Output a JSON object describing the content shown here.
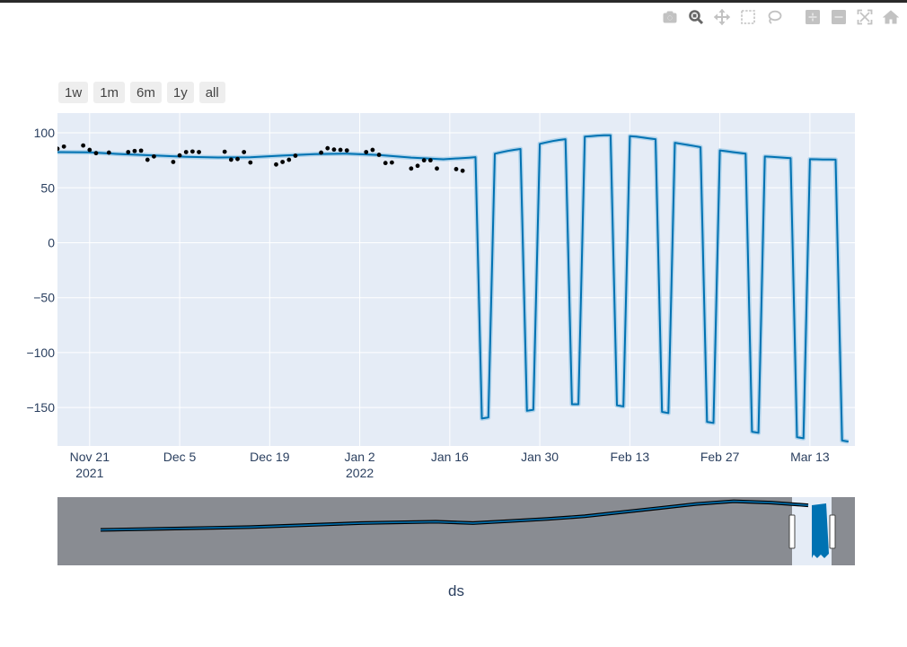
{
  "toolbar": {
    "icons": [
      "camera-icon",
      "zoom-icon",
      "pan-icon",
      "box-select-icon",
      "lasso-icon",
      "zoom-in-icon",
      "zoom-out-icon",
      "autoscale-icon",
      "home-icon"
    ],
    "icon_color": "#c2c2c2",
    "active_color": "#666666"
  },
  "range_selector": [
    {
      "label": "1w"
    },
    {
      "label": "1m"
    },
    {
      "label": "6m"
    },
    {
      "label": "1y"
    },
    {
      "label": "all"
    }
  ],
  "chart_data": {
    "type": "line",
    "xlabel": "ds",
    "ylabel": "",
    "x_range": [
      "2021-11-16",
      "2022-03-19"
    ],
    "ylim": [
      -185,
      118
    ],
    "grid": true,
    "x_ticks": [
      {
        "label": "Nov 21",
        "sub": "2021",
        "date": "2021-11-21"
      },
      {
        "label": "Dec 5",
        "sub": "",
        "date": "2021-12-05"
      },
      {
        "label": "Dec 19",
        "sub": "",
        "date": "2021-12-19"
      },
      {
        "label": "Jan 2",
        "sub": "2022",
        "date": "2022-01-02"
      },
      {
        "label": "Jan 16",
        "sub": "",
        "date": "2022-01-16"
      },
      {
        "label": "Jan 30",
        "sub": "",
        "date": "2022-01-30"
      },
      {
        "label": "Feb 13",
        "sub": "",
        "date": "2022-02-13"
      },
      {
        "label": "Feb 27",
        "sub": "",
        "date": "2022-02-27"
      },
      {
        "label": "Mar 13",
        "sub": "",
        "date": "2022-03-13"
      }
    ],
    "y_ticks": [
      100,
      50,
      0,
      -50,
      -100,
      -150
    ],
    "colors": {
      "plot_bg": "#e5ecf6",
      "forecast": "#0072b2",
      "band": "#aad0ea",
      "actual": "#000000",
      "slider_bg": "#898c92",
      "slider_window": "#e5ecf6"
    },
    "series": [
      {
        "name": "",
        "kind": "forecast",
        "points": [
          [
            "2021-11-16",
            82.5
          ],
          [
            "2021-11-21",
            82.2
          ],
          [
            "2021-11-26",
            80.6
          ],
          [
            "2021-12-01",
            79.4
          ],
          [
            "2021-12-06",
            78.2
          ],
          [
            "2021-12-11",
            77.6
          ],
          [
            "2021-12-16",
            77.8
          ],
          [
            "2021-12-21",
            79.3
          ],
          [
            "2021-12-26",
            80.6
          ],
          [
            "2021-12-31",
            81.1
          ],
          [
            "2022-01-05",
            79.8
          ],
          [
            "2022-01-10",
            77.5
          ],
          [
            "2022-01-15",
            75.9
          ],
          [
            "2022-01-19",
            77.4
          ],
          [
            "2022-01-20",
            77.9
          ],
          [
            "2022-01-21",
            -160
          ],
          [
            "2022-01-22",
            -159
          ],
          [
            "2022-01-23",
            81
          ],
          [
            "2022-01-24",
            82.3
          ],
          [
            "2022-01-25",
            83.5
          ],
          [
            "2022-01-26",
            84.5
          ],
          [
            "2022-01-27",
            85.3
          ],
          [
            "2022-01-28",
            -153
          ],
          [
            "2022-01-29",
            -152
          ],
          [
            "2022-01-30",
            90
          ],
          [
            "2022-01-31",
            91.3
          ],
          [
            "2022-02-01",
            92.5
          ],
          [
            "2022-02-02",
            93.5
          ],
          [
            "2022-02-03",
            94.2
          ],
          [
            "2022-02-04",
            -147
          ],
          [
            "2022-02-05",
            -147
          ],
          [
            "2022-02-06",
            96.5
          ],
          [
            "2022-02-07",
            97
          ],
          [
            "2022-02-08",
            97.5
          ],
          [
            "2022-02-09",
            97.8
          ],
          [
            "2022-02-10",
            97.8
          ],
          [
            "2022-02-11",
            -148
          ],
          [
            "2022-02-12",
            -149
          ],
          [
            "2022-02-13",
            97
          ],
          [
            "2022-02-14",
            96.5
          ],
          [
            "2022-02-15",
            95.8
          ],
          [
            "2022-02-16",
            95
          ],
          [
            "2022-02-17",
            94.2
          ],
          [
            "2022-02-18",
            -154
          ],
          [
            "2022-02-19",
            -155
          ],
          [
            "2022-02-20",
            91
          ],
          [
            "2022-02-21",
            90
          ],
          [
            "2022-02-22",
            89
          ],
          [
            "2022-02-23",
            88
          ],
          [
            "2022-02-24",
            87
          ],
          [
            "2022-02-25",
            -163
          ],
          [
            "2022-02-26",
            -164
          ],
          [
            "2022-02-27",
            84
          ],
          [
            "2022-02-28",
            83.3
          ],
          [
            "2022-03-01",
            82.5
          ],
          [
            "2022-03-02",
            81.7
          ],
          [
            "2022-03-03",
            81
          ],
          [
            "2022-03-04",
            -172
          ],
          [
            "2022-03-05",
            -173
          ],
          [
            "2022-03-06",
            78.5
          ],
          [
            "2022-03-07",
            78.2
          ],
          [
            "2022-03-08",
            77.8
          ],
          [
            "2022-03-09",
            77.4
          ],
          [
            "2022-03-10",
            77
          ],
          [
            "2022-03-11",
            -177
          ],
          [
            "2022-03-12",
            -178
          ],
          [
            "2022-03-13",
            76
          ],
          [
            "2022-03-14",
            75.9
          ],
          [
            "2022-03-15",
            75.8
          ],
          [
            "2022-03-16",
            75.7
          ],
          [
            "2022-03-17",
            75.6
          ],
          [
            "2022-03-18",
            -180
          ],
          [
            "2022-03-19",
            -181
          ]
        ]
      },
      {
        "name": "",
        "kind": "actual",
        "points": [
          [
            "2021-11-16",
            85.5
          ],
          [
            "2021-11-17",
            87.5
          ],
          [
            "2021-11-20",
            88.5
          ],
          [
            "2021-11-21",
            84.5
          ],
          [
            "2021-11-22",
            81.5
          ],
          [
            "2021-11-24",
            82
          ],
          [
            "2021-11-27",
            82.5
          ],
          [
            "2021-11-28",
            83.5
          ],
          [
            "2021-11-29",
            83.8
          ],
          [
            "2021-11-30",
            75.5
          ],
          [
            "2021-12-01",
            78.5
          ],
          [
            "2021-12-04",
            73.5
          ],
          [
            "2021-12-05",
            79.5
          ],
          [
            "2021-12-06",
            82.5
          ],
          [
            "2021-12-07",
            83
          ],
          [
            "2021-12-08",
            82.5
          ],
          [
            "2021-12-12",
            82.8
          ],
          [
            "2021-12-13",
            75.6
          ],
          [
            "2021-12-14",
            76.2
          ],
          [
            "2021-12-15",
            82.5
          ],
          [
            "2021-12-16",
            73
          ],
          [
            "2021-12-20",
            71.2
          ],
          [
            "2021-12-21",
            73.5
          ],
          [
            "2021-12-22",
            75.5
          ],
          [
            "2021-12-23",
            79.2
          ],
          [
            "2021-12-27",
            82
          ],
          [
            "2021-12-28",
            86
          ],
          [
            "2021-12-29",
            84.8
          ],
          [
            "2021-12-30",
            84.5
          ],
          [
            "2021-12-31",
            84
          ],
          [
            "2022-01-03",
            82.5
          ],
          [
            "2022-01-04",
            84.5
          ],
          [
            "2022-01-05",
            80
          ],
          [
            "2022-01-06",
            72.5
          ],
          [
            "2022-01-07",
            73
          ],
          [
            "2022-01-10",
            67.5
          ],
          [
            "2022-01-11",
            70
          ],
          [
            "2022-01-12",
            75
          ],
          [
            "2022-01-13",
            75
          ],
          [
            "2022-01-14",
            67.5
          ],
          [
            "2022-01-17",
            67
          ],
          [
            "2022-01-18",
            65.5
          ]
        ]
      }
    ],
    "rangeslider": {
      "window": [
        "2022-03-04",
        "2022-03-19"
      ],
      "overview_series": [
        0.48,
        0.47,
        0.46,
        0.45,
        0.44,
        0.42,
        0.4,
        0.38,
        0.37,
        0.36,
        0.38,
        0.35,
        0.32,
        0.28,
        0.22,
        0.16,
        0.1,
        0.06,
        0.08,
        0.12
      ]
    }
  }
}
